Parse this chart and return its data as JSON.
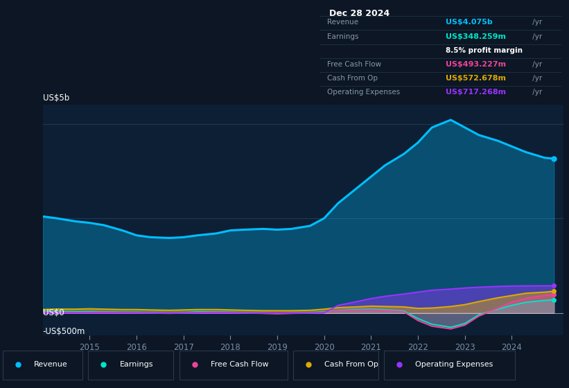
{
  "bg_color": "#0c1624",
  "chart_bg": "#0d1f35",
  "y_label_top": "US$5b",
  "y_label_mid": "US$0",
  "y_label_bot": "-US$500m",
  "x_ticks": [
    2015,
    2016,
    2017,
    2018,
    2019,
    2020,
    2021,
    2022,
    2023,
    2024
  ],
  "revenue_color": "#00bfff",
  "earnings_color": "#00e5c8",
  "fcf_color": "#ee4499",
  "cashfromop_color": "#ddaa00",
  "opex_color": "#9933ff",
  "years": [
    2014.0,
    2014.3,
    2014.7,
    2015.0,
    2015.3,
    2015.7,
    2016.0,
    2016.3,
    2016.7,
    2017.0,
    2017.3,
    2017.7,
    2018.0,
    2018.3,
    2018.7,
    2019.0,
    2019.3,
    2019.7,
    2020.0,
    2020.3,
    2020.7,
    2021.0,
    2021.3,
    2021.7,
    2022.0,
    2022.3,
    2022.7,
    2023.0,
    2023.3,
    2023.7,
    2024.0,
    2024.3,
    2024.7,
    2024.9
  ],
  "revenue": [
    2.55,
    2.5,
    2.42,
    2.38,
    2.32,
    2.18,
    2.05,
    2.0,
    1.98,
    2.0,
    2.05,
    2.1,
    2.18,
    2.2,
    2.22,
    2.2,
    2.22,
    2.3,
    2.5,
    2.9,
    3.3,
    3.6,
    3.9,
    4.2,
    4.5,
    4.9,
    5.1,
    4.9,
    4.7,
    4.55,
    4.4,
    4.25,
    4.1,
    4.075
  ],
  "earnings": [
    0.04,
    0.04,
    0.03,
    0.04,
    0.03,
    0.02,
    0.02,
    0.01,
    0.0,
    0.01,
    0.03,
    0.03,
    0.02,
    0.01,
    0.0,
    -0.01,
    0.0,
    0.01,
    0.03,
    0.06,
    0.09,
    0.1,
    0.08,
    0.05,
    -0.15,
    -0.3,
    -0.38,
    -0.28,
    -0.05,
    0.1,
    0.2,
    0.28,
    0.33,
    0.348
  ],
  "fcf": [
    0.02,
    0.02,
    0.01,
    0.02,
    0.02,
    0.01,
    0.01,
    0.0,
    -0.01,
    0.0,
    0.01,
    0.02,
    0.01,
    0.0,
    -0.01,
    -0.02,
    -0.01,
    0.0,
    0.02,
    0.05,
    0.07,
    0.08,
    0.06,
    0.03,
    -0.2,
    -0.35,
    -0.42,
    -0.32,
    -0.08,
    0.12,
    0.28,
    0.38,
    0.46,
    0.493
  ],
  "cashfromop": [
    0.09,
    0.1,
    0.1,
    0.11,
    0.1,
    0.09,
    0.09,
    0.08,
    0.07,
    0.08,
    0.09,
    0.09,
    0.08,
    0.07,
    0.06,
    0.06,
    0.06,
    0.07,
    0.1,
    0.14,
    0.16,
    0.18,
    0.17,
    0.16,
    0.12,
    0.13,
    0.17,
    0.22,
    0.3,
    0.4,
    0.46,
    0.52,
    0.55,
    0.573
  ],
  "opex": [
    0.0,
    0.0,
    0.0,
    0.0,
    0.0,
    0.0,
    0.0,
    0.0,
    0.0,
    0.0,
    0.0,
    0.0,
    0.0,
    0.0,
    0.0,
    0.0,
    0.0,
    0.0,
    0.0,
    0.2,
    0.3,
    0.38,
    0.44,
    0.5,
    0.55,
    0.6,
    0.63,
    0.66,
    0.68,
    0.7,
    0.71,
    0.715,
    0.717,
    0.717
  ],
  "tooltip": {
    "title": "Dec 28 2024",
    "rows": [
      {
        "label": "Revenue",
        "value": "US$4.075b",
        "unit": "/yr",
        "color": "#00bfff",
        "sub": null
      },
      {
        "label": "Earnings",
        "value": "US$348.259m",
        "unit": "/yr",
        "color": "#00e5c8",
        "sub": "8.5% profit margin"
      },
      {
        "label": "Free Cash Flow",
        "value": "US$493.227m",
        "unit": "/yr",
        "color": "#ee4499",
        "sub": null
      },
      {
        "label": "Cash From Op",
        "value": "US$572.678m",
        "unit": "/yr",
        "color": "#ddaa00",
        "sub": null
      },
      {
        "label": "Operating Expenses",
        "value": "US$717.268m",
        "unit": "/yr",
        "color": "#9933ff",
        "sub": null
      }
    ]
  },
  "legend": [
    {
      "label": "Revenue",
      "color": "#00bfff"
    },
    {
      "label": "Earnings",
      "color": "#00e5c8"
    },
    {
      "label": "Free Cash Flow",
      "color": "#ee4499"
    },
    {
      "label": "Cash From Op",
      "color": "#ddaa00"
    },
    {
      "label": "Operating Expenses",
      "color": "#9933ff"
    }
  ]
}
